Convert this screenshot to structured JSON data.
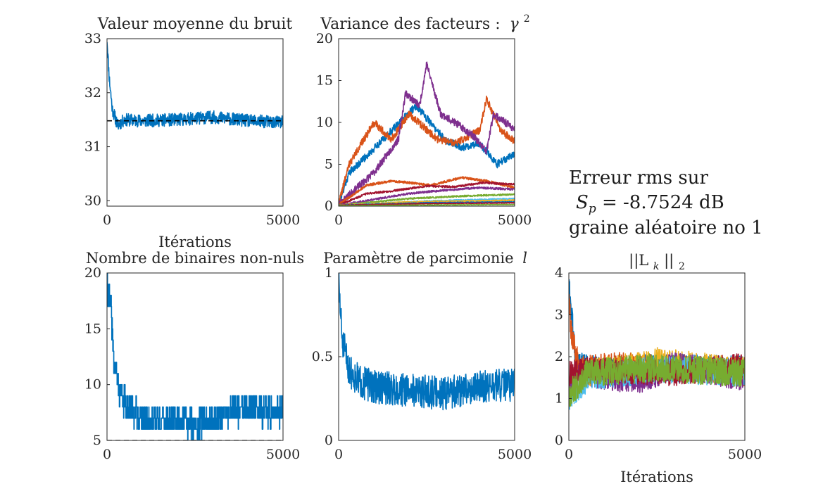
{
  "figure": {
    "info": {
      "line1": "Erreur rms sur",
      "line2_symbol": "S",
      "line2_subscript": "p",
      "line2_value": "= -8.7524 dB",
      "line3": "graine aléatoire no 1"
    }
  },
  "chart_data": [
    {
      "id": "p1",
      "type": "line",
      "title": "Valeur moyenne du bruit",
      "xlabel": "Itérations",
      "ylabel": "",
      "xlim": [
        0,
        5000
      ],
      "ylim": [
        29.9,
        33
      ],
      "xticks": [
        0,
        5000
      ],
      "xtick_labels": [
        "0",
        "5000"
      ],
      "yticks": [
        30,
        31,
        32,
        33
      ],
      "ytick_labels": [
        "30",
        "31",
        "32",
        "33"
      ],
      "grid": false,
      "reference_line": {
        "y": 31.48,
        "style": "dashed",
        "color": "#000000"
      },
      "series": [
        {
          "color": "#0072BD",
          "points": [
            [
              0,
              33.0
            ],
            [
              60,
              32.3
            ],
            [
              150,
              31.7
            ],
            [
              300,
              31.4
            ],
            [
              500,
              31.5
            ],
            [
              1000,
              31.48
            ],
            [
              2000,
              31.5
            ],
            [
              3000,
              31.55
            ],
            [
              4000,
              31.48
            ],
            [
              5000,
              31.45
            ]
          ],
          "noise": 0.12,
          "seed": 11
        }
      ]
    },
    {
      "id": "p2",
      "type": "line",
      "title": "Variance des facteurs :",
      "title_symbol": "γ",
      "title_superscript": "2",
      "xlabel": "",
      "ylabel": "",
      "xlim": [
        0,
        5000
      ],
      "ylim": [
        0,
        20
      ],
      "xticks": [
        0,
        5000
      ],
      "xtick_labels": [
        "0",
        "5000"
      ],
      "yticks": [
        0,
        5,
        10,
        15,
        20
      ],
      "ytick_labels": [
        "0",
        "5",
        "10",
        "15",
        "20"
      ],
      "grid": false,
      "series": [
        {
          "color": "#0072BD",
          "points": [
            [
              0,
              0.3
            ],
            [
              300,
              4
            ],
            [
              800,
              6
            ],
            [
              1500,
              9
            ],
            [
              2200,
              12
            ],
            [
              2600,
              10
            ],
            [
              3000,
              8
            ],
            [
              3500,
              7
            ],
            [
              4000,
              7.5
            ],
            [
              4500,
              5
            ],
            [
              5000,
              6.2
            ]
          ],
          "noise": 0.45,
          "seed": 21
        },
        {
          "color": "#D95319",
          "points": [
            [
              0,
              0.3
            ],
            [
              300,
              5
            ],
            [
              1000,
              10
            ],
            [
              1500,
              8
            ],
            [
              2000,
              11
            ],
            [
              2800,
              8
            ],
            [
              3300,
              7.5
            ],
            [
              4000,
              9
            ],
            [
              4200,
              12.8
            ],
            [
              4600,
              9
            ],
            [
              5000,
              7.8
            ]
          ],
          "noise": 0.45,
          "seed": 22
        },
        {
          "color": "#7E2F8E",
          "points": [
            [
              0,
              0.2
            ],
            [
              1000,
              4
            ],
            [
              1700,
              8
            ],
            [
              1900,
              13.5
            ],
            [
              2300,
              12
            ],
            [
              2500,
              17
            ],
            [
              2900,
              11
            ],
            [
              3300,
              10
            ],
            [
              3800,
              8.5
            ],
            [
              4200,
              6.5
            ],
            [
              4400,
              11
            ],
            [
              5000,
              9.2
            ]
          ],
          "noise": 0.45,
          "seed": 23
        },
        {
          "color": "#D95319",
          "points": [
            [
              0,
              0.2
            ],
            [
              800,
              2.5
            ],
            [
              1500,
              3
            ],
            [
              2000,
              2.8
            ],
            [
              2600,
              2.5
            ],
            [
              3500,
              3.4
            ],
            [
              4200,
              3
            ],
            [
              5000,
              2.2
            ]
          ],
          "noise": 0.15,
          "seed": 24
        },
        {
          "color": "#A2142F",
          "points": [
            [
              0,
              0.1
            ],
            [
              800,
              1.5
            ],
            [
              1500,
              1.8
            ],
            [
              2500,
              2.4
            ],
            [
              3300,
              2.3
            ],
            [
              4100,
              2.8
            ],
            [
              5000,
              2.6
            ]
          ],
          "noise": 0.12,
          "seed": 25
        },
        {
          "color": "#7E2F8E",
          "points": [
            [
              0,
              0.1
            ],
            [
              1000,
              0.8
            ],
            [
              2000,
              1.5
            ],
            [
              3000,
              1.9
            ],
            [
              4000,
              2.2
            ],
            [
              5000,
              2.0
            ]
          ],
          "noise": 0.12,
          "seed": 26
        },
        {
          "color": "#77AC30",
          "points": [
            [
              0,
              0.1
            ],
            [
              2000,
              0.9
            ],
            [
              3500,
              1.2
            ],
            [
              5000,
              1.4
            ]
          ],
          "noise": 0.1,
          "seed": 27
        },
        {
          "color": "#4DBEEE",
          "points": [
            [
              0,
              0.1
            ],
            [
              2500,
              0.6
            ],
            [
              5000,
              0.9
            ]
          ],
          "noise": 0.08,
          "seed": 28
        },
        {
          "color": "#EDB120",
          "points": [
            [
              0,
              0.1
            ],
            [
              2000,
              0.5
            ],
            [
              5000,
              0.7
            ]
          ],
          "noise": 0.08,
          "seed": 29
        },
        {
          "color": "#0072BD",
          "points": [
            [
              0,
              0.1
            ],
            [
              2500,
              0.4
            ],
            [
              5000,
              0.5
            ]
          ],
          "noise": 0.06,
          "seed": 30
        },
        {
          "color": "#A2142F",
          "points": [
            [
              0,
              0.1
            ],
            [
              2500,
              0.3
            ],
            [
              5000,
              0.4
            ]
          ],
          "noise": 0.05,
          "seed": 31
        },
        {
          "color": "#77AC30",
          "points": [
            [
              0,
              0.05
            ],
            [
              5000,
              0.2
            ]
          ],
          "noise": 0.04,
          "seed": 32
        }
      ]
    },
    {
      "id": "p3",
      "type": "line",
      "title": "Nombre de binaires non-nuls",
      "xlabel": "",
      "ylabel": "",
      "xlim": [
        0,
        5000
      ],
      "ylim": [
        5,
        20
      ],
      "xticks": [
        0,
        5000
      ],
      "xtick_labels": [
        "0",
        "5000"
      ],
      "yticks": [
        5,
        10,
        15,
        20
      ],
      "ytick_labels": [
        "5",
        "10",
        "15",
        "20"
      ],
      "grid": false,
      "reference_line": {
        "y": 5,
        "style": "dashed",
        "color": "#000000"
      },
      "series": [
        {
          "color": "#0072BD",
          "points": [
            [
              0,
              18.5
            ],
            [
              100,
              17
            ],
            [
              200,
              12
            ],
            [
              350,
              9
            ],
            [
              600,
              8
            ],
            [
              1000,
              7
            ],
            [
              1500,
              6.8
            ],
            [
              2000,
              6.8
            ],
            [
              2500,
              6.5
            ],
            [
              3000,
              6.8
            ],
            [
              3500,
              7.5
            ],
            [
              4000,
              8
            ],
            [
              4500,
              7.5
            ],
            [
              5000,
              7.5
            ]
          ],
          "noise": 1.3,
          "seed": 41,
          "step": true,
          "integer": true,
          "ymin": 5
        }
      ]
    },
    {
      "id": "p4",
      "type": "line",
      "title": "Paramètre de parcimonie",
      "title_symbol": "l",
      "xlabel": "",
      "ylabel": "",
      "xlim": [
        0,
        5000
      ],
      "ylim": [
        0,
        1
      ],
      "xticks": [
        0,
        5000
      ],
      "xtick_labels": [
        "0",
        "5000"
      ],
      "yticks": [
        0,
        0.5,
        1
      ],
      "ytick_labels": [
        "0",
        "0.5",
        "1"
      ],
      "grid": false,
      "series": [
        {
          "color": "#0072BD",
          "points": [
            [
              0,
              0.95
            ],
            [
              100,
              0.6
            ],
            [
              300,
              0.42
            ],
            [
              600,
              0.35
            ],
            [
              1000,
              0.32
            ],
            [
              2000,
              0.3
            ],
            [
              3000,
              0.28
            ],
            [
              4000,
              0.32
            ],
            [
              5000,
              0.33
            ]
          ],
          "noise": 0.1,
          "seed": 51
        }
      ]
    },
    {
      "id": "p5",
      "type": "line",
      "title": "||L",
      "title_subscript": "k",
      "title_suffix": "||",
      "title_suffix_subscript": "2",
      "xlabel": "Itérations",
      "ylabel": "",
      "xlim": [
        0,
        5000
      ],
      "ylim": [
        0,
        4
      ],
      "xticks": [
        0,
        5000
      ],
      "xtick_labels": [
        "0",
        "5000"
      ],
      "yticks": [
        0,
        1,
        2,
        3,
        4
      ],
      "ytick_labels": [
        "0",
        "1",
        "2",
        "3",
        "4"
      ],
      "grid": false,
      "series": [
        {
          "color": "#0072BD",
          "points": [
            [
              0,
              3.7
            ],
            [
              60,
              3.2
            ],
            [
              200,
              1.8
            ],
            [
              1000,
              1.7
            ],
            [
              3000,
              1.75
            ],
            [
              5000,
              1.7
            ]
          ],
          "noise": 0.32,
          "seed": 61
        },
        {
          "color": "#D95319",
          "points": [
            [
              0,
              3.3
            ],
            [
              80,
              2.5
            ],
            [
              300,
              1.7
            ],
            [
              1500,
              1.8
            ],
            [
              5000,
              1.6
            ]
          ],
          "noise": 0.32,
          "seed": 62
        },
        {
          "color": "#EDB120",
          "points": [
            [
              0,
              1.2
            ],
            [
              500,
              1.6
            ],
            [
              2500,
              1.9
            ],
            [
              5000,
              1.7
            ]
          ],
          "noise": 0.32,
          "seed": 63
        },
        {
          "color": "#7E2F8E",
          "points": [
            [
              0,
              1.4
            ],
            [
              500,
              1.6
            ],
            [
              2000,
              1.4
            ],
            [
              3000,
              1.8
            ],
            [
              5000,
              1.5
            ]
          ],
          "noise": 0.32,
          "seed": 64
        },
        {
          "color": "#4DBEEE",
          "points": [
            [
              0,
              1.0
            ],
            [
              600,
              1.5
            ],
            [
              2500,
              1.7
            ],
            [
              5000,
              1.6
            ]
          ],
          "noise": 0.32,
          "seed": 65
        },
        {
          "color": "#A2142F",
          "points": [
            [
              0,
              1.6
            ],
            [
              500,
              1.7
            ],
            [
              3000,
              1.6
            ],
            [
              5000,
              1.8
            ]
          ],
          "noise": 0.3,
          "seed": 66
        },
        {
          "color": "#77AC30",
          "points": [
            [
              0,
              1.1
            ],
            [
              500,
              1.6
            ],
            [
              2500,
              1.75
            ],
            [
              5000,
              1.6
            ]
          ],
          "noise": 0.34,
          "seed": 67
        }
      ]
    }
  ]
}
